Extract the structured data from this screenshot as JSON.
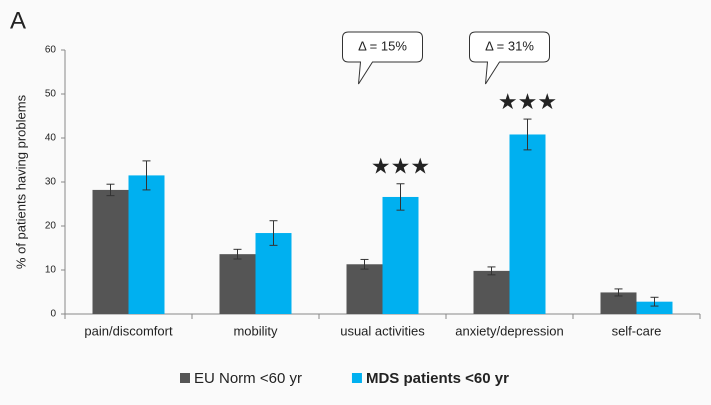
{
  "chart_data": {
    "type": "bar",
    "panel_label": "A",
    "y_label": "% of patients having problems",
    "categories": [
      "pain/discomfort",
      "mobility",
      "usual activities",
      "anxiety/depression",
      "self-care"
    ],
    "series": [
      {
        "name": "EU Norm <60 yr",
        "color": "#555555",
        "values": [
          28.2,
          13.6,
          11.3,
          9.8,
          4.9
        ],
        "errors": [
          1.3,
          1.1,
          1.1,
          0.9,
          0.8
        ]
      },
      {
        "name": "MDS patients <60 yr",
        "color": "#00b0f0",
        "values": [
          31.5,
          18.4,
          26.6,
          40.8,
          2.8
        ],
        "errors": [
          3.3,
          2.8,
          3.0,
          3.5,
          1.0
        ]
      }
    ],
    "annotations": [
      {
        "label": "Δ = 15%",
        "stars": "★★★"
      },
      {
        "label": "Δ = 31%",
        "stars": "★★★"
      }
    ],
    "ylim": [
      0,
      60
    ],
    "yticks": [
      0,
      10,
      20,
      30,
      40,
      50,
      60
    ]
  }
}
